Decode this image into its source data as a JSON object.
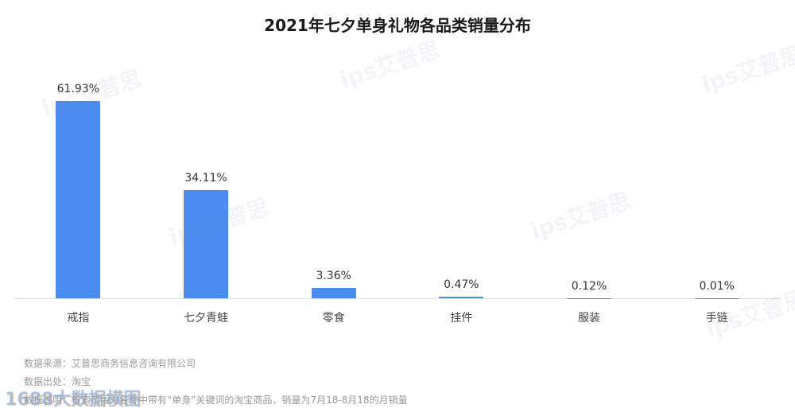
{
  "title": "2021年七夕单身礼物各品类销量分布",
  "chart_data": {
    "type": "bar",
    "categories": [
      "戒指",
      "七夕青蛙",
      "零食",
      "挂件",
      "服装",
      "手链"
    ],
    "values": [
      61.93,
      34.11,
      3.36,
      0.47,
      0.12,
      0.01
    ],
    "value_labels": [
      "61.93%",
      "34.11%",
      "3.36%",
      "0.47%",
      "0.12%",
      "0.01%"
    ],
    "bar_color": "#4a8cf0",
    "ylim": [
      0,
      70
    ],
    "grid": false,
    "legend": "none"
  },
  "footer": {
    "source": "数据来源：艾普思商务信息咨询有限公司",
    "origin": "数据出处：淘宝",
    "note": "数据说明：检索范围为名称中带有“单身”关键词的淘宝商品，销量为7月18-8月18的月销量"
  },
  "watermark": {
    "text": "ips艾普思",
    "corner": "1688大数据横图"
  }
}
